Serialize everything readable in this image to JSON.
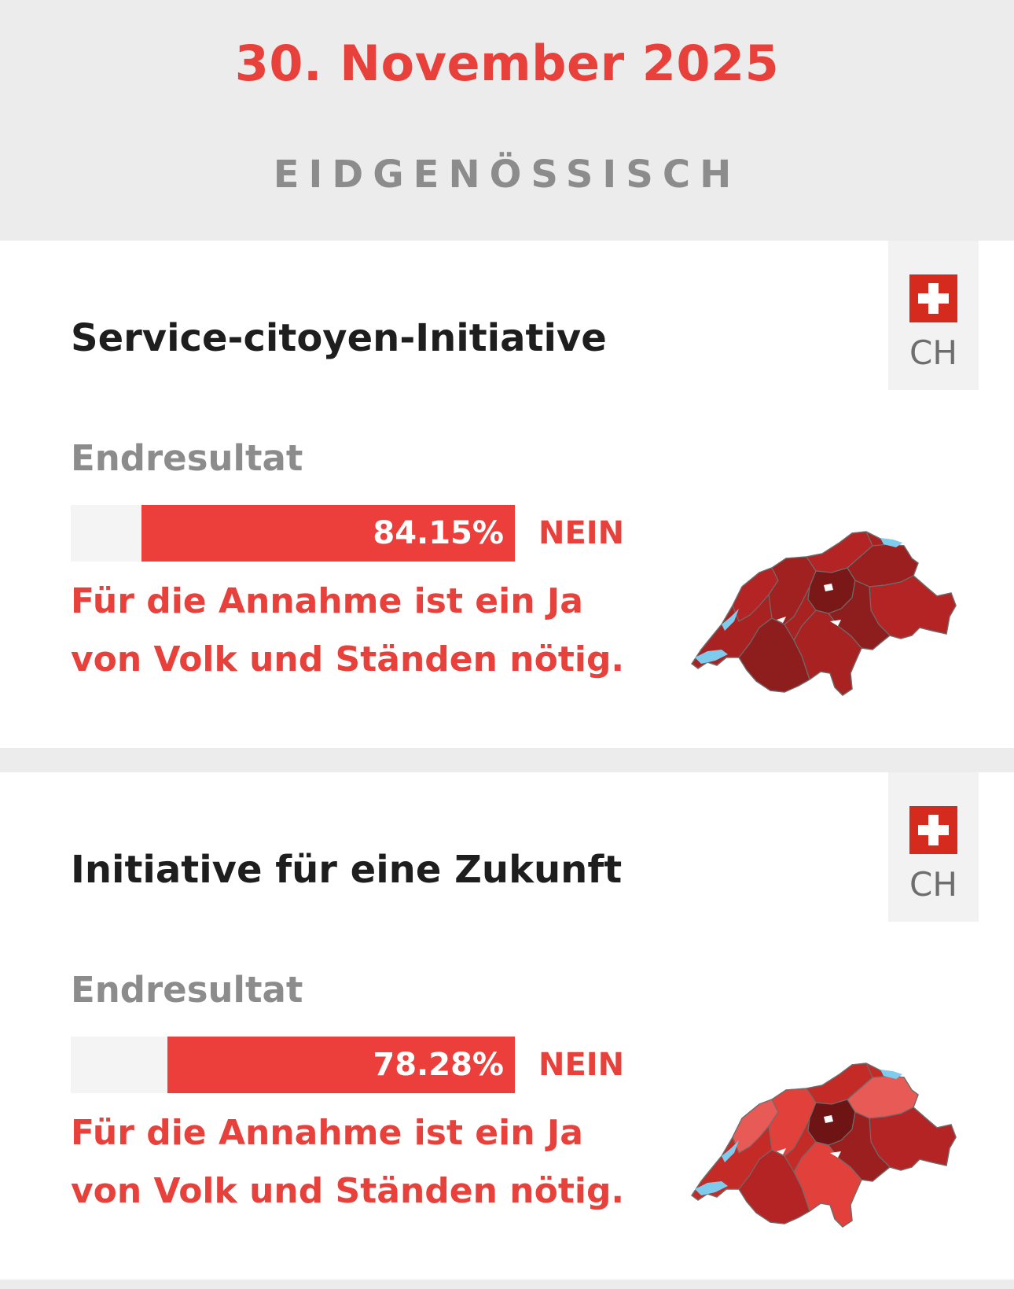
{
  "header": {
    "date": "30. November 2025",
    "level": "EIDGENÖSSISCH"
  },
  "votes": [
    {
      "title": "Service-citoyen-Initiative",
      "badge": "CH",
      "result_label": "Endresultat",
      "no_percent": 84.15,
      "no_percent_label": "84.15%",
      "verdict": "NEIN",
      "note": "Für die Annahme ist ein Ja von Volk und Ständen nötig."
    },
    {
      "title": "Initiative für eine Zukunft",
      "badge": "CH",
      "result_label": "Endresultat",
      "no_percent": 78.28,
      "no_percent_label": "78.28%",
      "verdict": "NEIN",
      "note": "Für die Annahme ist ein Ja von Volk und Ständen nötig."
    }
  ],
  "colors": {
    "accent_red": "#e8403a",
    "bar_red": "#ec3e3b",
    "swiss_flag": "#d52b1e",
    "map_dark": "#8e1e1e",
    "map_mid": "#b52424",
    "map_light": "#e85a55",
    "lake": "#7ecbee"
  }
}
